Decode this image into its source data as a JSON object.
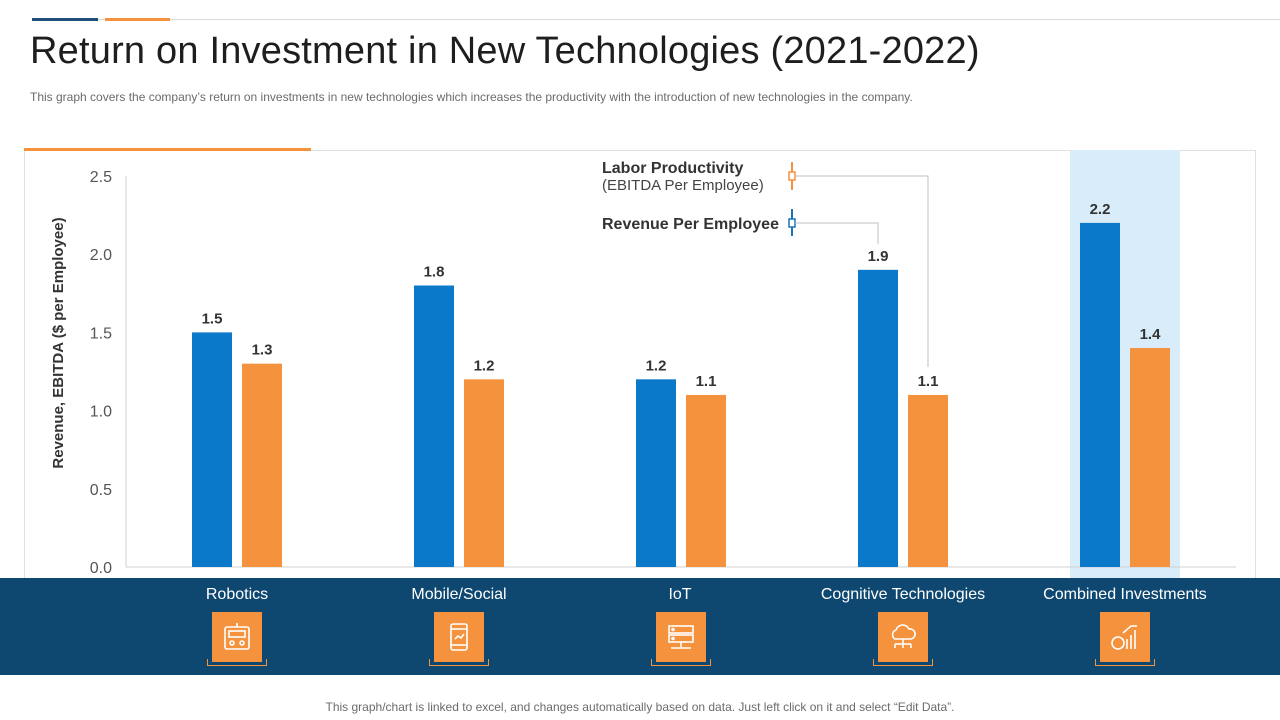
{
  "page": {
    "title": "Return on Investment in New Technologies (2021-2022)",
    "subtitle": "This graph covers the company’s return on investments in new technologies which increases the productivity with the introduction of new technologies in the company.",
    "footer": "This graph/chart is linked to excel, and changes automatically based on data. Just left click on it and select “Edit Data”."
  },
  "colors": {
    "revenue": "#0b79c9",
    "labor": "#f5923e",
    "highlight": "#d8ecfa",
    "band": "#0e4770",
    "text": "#333333"
  },
  "chart_data": {
    "type": "bar",
    "categories": [
      "Robotics",
      "Mobile/Social",
      "IoT",
      "Cognitive Technologies",
      "Combined Investments"
    ],
    "series": [
      {
        "name": "Revenue Per Employee",
        "values": [
          1.5,
          1.8,
          1.2,
          1.9,
          2.2
        ]
      },
      {
        "name": "Labor Productivity",
        "subname": "(EBITDA Per Employee)",
        "values": [
          1.3,
          1.2,
          1.1,
          1.1,
          1.4
        ]
      }
    ],
    "value_labels": {
      "revenue": [
        "1.5",
        "1.8",
        "1.2",
        "1.9",
        "2.2"
      ],
      "labor": [
        "1.3",
        "1.2",
        "1.1",
        "1.1",
        "1.4"
      ]
    },
    "ylabel": "Revenue, EBITDA ($ per Employee)",
    "ylim": [
      0,
      2.5
    ],
    "yticks": [
      "0.0",
      "0.5",
      "1.0",
      "1.5",
      "2.0",
      "2.5"
    ],
    "highlighted_category": "Combined Investments",
    "legend_placement": "top-center",
    "category_icons": [
      "robot-icon",
      "mobile-icon",
      "server-icon",
      "cloud-network-icon",
      "money-growth-icon"
    ]
  }
}
